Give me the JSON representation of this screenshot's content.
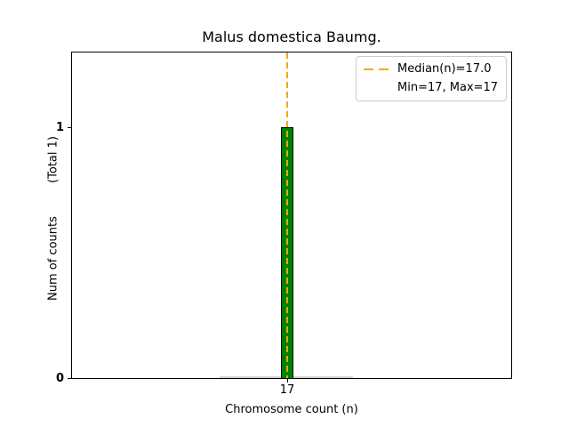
{
  "chart_data": {
    "type": "bar",
    "title": "Malus domestica Baumg.",
    "xlabel": "Chromosome count (n)",
    "ylabel": "Num of counts         (Total 1)",
    "categories": [
      17
    ],
    "values": [
      1
    ],
    "total_counts": 1,
    "median_n": 17.0,
    "min_n": 17,
    "max_n": 17,
    "x_tick_labels": [
      "17"
    ],
    "y_tick_labels": [
      "0",
      "1"
    ],
    "ylim": [
      0,
      1.3
    ],
    "grid": false,
    "legend": {
      "position": "upper right",
      "entries": [
        "Median(n)=17.0",
        "Min=17, Max=17"
      ]
    },
    "colors": {
      "bar_fill": "#008000",
      "bar_edge": "#000000",
      "median_line": "#FFA500",
      "zero_bin_baseline": "#D3D3D3",
      "legend_border": "#cccccc",
      "background": "#FFFFFF"
    }
  }
}
